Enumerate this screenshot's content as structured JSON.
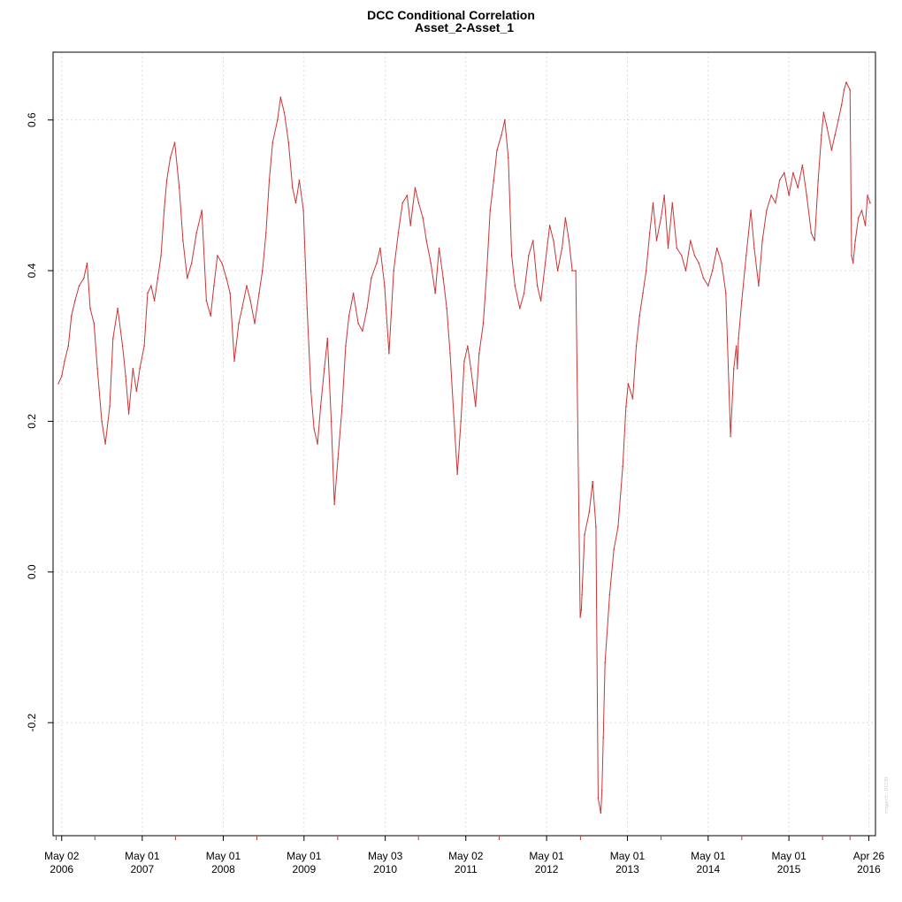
{
  "chart_data": {
    "type": "line",
    "title": "DCC Conditional Correlation",
    "subtitle": "Asset_2-Asset_1",
    "watermark": "rmgarch : DCCfit",
    "xlabel": "",
    "ylabel": "",
    "grid": true,
    "legend": "none",
    "series_color": "#CC3333",
    "grid_color": "#dddddd",
    "xlim": [
      "2006-03-24",
      "2016-05-26"
    ],
    "ylim": [
      -0.35,
      0.69
    ],
    "yticks": [
      {
        "value": -0.2,
        "label": "-0.2"
      },
      {
        "value": 0.0,
        "label": "0.0"
      },
      {
        "value": 0.2,
        "label": "0.2"
      },
      {
        "value": 0.4,
        "label": "0.4"
      },
      {
        "value": 0.6,
        "label": "0.6"
      }
    ],
    "xticks": [
      {
        "date": "2006-05-02",
        "line1": "May 02",
        "line2": "2006"
      },
      {
        "date": "2007-05-01",
        "line1": "May 01",
        "line2": "2007"
      },
      {
        "date": "2008-05-01",
        "line1": "May 01",
        "line2": "2008"
      },
      {
        "date": "2009-05-01",
        "line1": "May 01",
        "line2": "2009"
      },
      {
        "date": "2010-05-03",
        "line1": "May 03",
        "line2": "2010"
      },
      {
        "date": "2011-05-02",
        "line1": "May 02",
        "line2": "2011"
      },
      {
        "date": "2012-05-01",
        "line1": "May 01",
        "line2": "2012"
      },
      {
        "date": "2013-05-01",
        "line1": "May 01",
        "line2": "2013"
      },
      {
        "date": "2014-05-01",
        "line1": "May 01",
        "line2": "2014"
      },
      {
        "date": "2015-05-01",
        "line1": "May 01",
        "line2": "2015"
      },
      {
        "date": "2016-04-26",
        "line1": "Apr 26",
        "line2": "2016"
      }
    ],
    "minor_ticks": [
      "2006-04-07",
      "2006-09-29",
      "2007-09-28",
      "2008-09-30",
      "2009-09-30",
      "2010-09-30",
      "2011-09-30",
      "2012-10-01",
      "2013-09-30",
      "2014-09-30",
      "2015-09-30",
      "2016-02-01"
    ],
    "series": [
      {
        "x": [
          "2006-04-17",
          "2006-05-02",
          "2006-05-15",
          "2006-06-01",
          "2006-06-15",
          "2006-07-01",
          "2006-07-20",
          "2006-08-10",
          "2006-08-25",
          "2006-09-08",
          "2006-09-25",
          "2006-10-10",
          "2006-10-30",
          "2006-11-15",
          "2006-12-05",
          "2006-12-20",
          "2007-01-10",
          "2007-02-01",
          "2007-02-15",
          "2007-03-01",
          "2007-03-20",
          "2007-04-05",
          "2007-04-20",
          "2007-05-10",
          "2007-05-25",
          "2007-06-10",
          "2007-06-25",
          "2007-07-10",
          "2007-07-25",
          "2007-08-08",
          "2007-08-20",
          "2007-09-05",
          "2007-09-25",
          "2007-10-15",
          "2007-11-01",
          "2007-11-20",
          "2007-12-10",
          "2008-01-01",
          "2008-01-25",
          "2008-02-15",
          "2008-03-05",
          "2008-03-20",
          "2008-04-05",
          "2008-04-25",
          "2008-05-15",
          "2008-06-01",
          "2008-06-20",
          "2008-07-10",
          "2008-07-25",
          "2008-08-15",
          "2008-09-01",
          "2008-09-20",
          "2008-10-10",
          "2008-10-25",
          "2008-11-10",
          "2008-11-25",
          "2008-12-10",
          "2009-01-01",
          "2009-01-15",
          "2009-02-01",
          "2009-02-20",
          "2009-03-10",
          "2009-03-25",
          "2009-04-10",
          "2009-04-28",
          "2009-05-15",
          "2009-06-01",
          "2009-06-15",
          "2009-07-01",
          "2009-07-15",
          "2009-08-01",
          "2009-08-15",
          "2009-09-01",
          "2009-09-15",
          "2009-10-01",
          "2009-10-20",
          "2009-11-05",
          "2009-11-20",
          "2009-12-10",
          "2010-01-01",
          "2010-01-20",
          "2010-02-10",
          "2010-03-01",
          "2010-03-25",
          "2010-04-10",
          "2010-04-30",
          "2010-05-20",
          "2010-06-10",
          "2010-07-01",
          "2010-07-20",
          "2010-08-10",
          "2010-08-25",
          "2010-09-15",
          "2010-10-01",
          "2010-10-20",
          "2010-11-05",
          "2010-11-25",
          "2010-12-15",
          "2011-01-01",
          "2011-01-20",
          "2011-02-05",
          "2011-02-20",
          "2011-03-10",
          "2011-03-25",
          "2011-04-10",
          "2011-04-25",
          "2011-05-10",
          "2011-05-25",
          "2011-06-15",
          "2011-07-01",
          "2011-07-20",
          "2011-08-05",
          "2011-08-20",
          "2011-09-05",
          "2011-09-20",
          "2011-10-10",
          "2011-10-25",
          "2011-11-10",
          "2011-11-25",
          "2011-12-10",
          "2012-01-01",
          "2012-01-20",
          "2012-02-10",
          "2012-03-01",
          "2012-03-20",
          "2012-04-05",
          "2012-04-25",
          "2012-05-15",
          "2012-06-01",
          "2012-06-20",
          "2012-07-10",
          "2012-07-25",
          "2012-08-10",
          "2012-08-25",
          "2012-09-10",
          "2012-09-30",
          "2012-10-05",
          "2012-10-08",
          "2012-10-20",
          "2012-11-10",
          "2012-11-25",
          "2012-12-10",
          "2012-12-20",
          "2013-01-01",
          "2013-01-06",
          "2013-01-12",
          "2013-01-20",
          "2013-02-10",
          "2013-03-01",
          "2013-03-20",
          "2013-04-10",
          "2013-04-25",
          "2013-05-05",
          "2013-05-25",
          "2013-06-10",
          "2013-06-25",
          "2013-07-10",
          "2013-07-25",
          "2013-08-10",
          "2013-08-25",
          "2013-09-10",
          "2013-09-30",
          "2013-10-15",
          "2013-11-01",
          "2013-11-20",
          "2013-12-10",
          "2014-01-01",
          "2014-01-20",
          "2014-02-10",
          "2014-03-01",
          "2014-03-20",
          "2014-04-10",
          "2014-05-01",
          "2014-05-20",
          "2014-06-10",
          "2014-07-01",
          "2014-07-20",
          "2014-08-10",
          "2014-08-25",
          "2014-09-05",
          "2014-09-10",
          "2014-09-15",
          "2014-09-30",
          "2014-10-20",
          "2014-11-10",
          "2014-11-25",
          "2014-12-15",
          "2015-01-01",
          "2015-01-20",
          "2015-02-10",
          "2015-03-01",
          "2015-03-20",
          "2015-04-10",
          "2015-05-01",
          "2015-05-20",
          "2015-06-10",
          "2015-07-01",
          "2015-07-20",
          "2015-08-10",
          "2015-08-25",
          "2015-09-10",
          "2015-09-25",
          "2015-10-05",
          "2015-10-20",
          "2015-11-10",
          "2015-11-25",
          "2015-12-10",
          "2015-12-25",
          "2016-01-05",
          "2016-01-15",
          "2016-02-01",
          "2016-02-08",
          "2016-02-15",
          "2016-02-25",
          "2016-03-10",
          "2016-03-25",
          "2016-04-10",
          "2016-04-20",
          "2016-05-02"
        ],
        "y": [
          0.25,
          0.26,
          0.28,
          0.3,
          0.34,
          0.36,
          0.38,
          0.39,
          0.41,
          0.35,
          0.33,
          0.27,
          0.2,
          0.17,
          0.22,
          0.31,
          0.35,
          0.3,
          0.26,
          0.21,
          0.27,
          0.24,
          0.27,
          0.3,
          0.37,
          0.38,
          0.36,
          0.39,
          0.42,
          0.48,
          0.52,
          0.55,
          0.57,
          0.51,
          0.44,
          0.39,
          0.41,
          0.45,
          0.48,
          0.36,
          0.34,
          0.38,
          0.42,
          0.41,
          0.39,
          0.37,
          0.28,
          0.33,
          0.35,
          0.38,
          0.36,
          0.33,
          0.37,
          0.4,
          0.45,
          0.52,
          0.57,
          0.6,
          0.63,
          0.61,
          0.57,
          0.51,
          0.49,
          0.52,
          0.48,
          0.35,
          0.24,
          0.19,
          0.17,
          0.22,
          0.27,
          0.31,
          0.2,
          0.09,
          0.15,
          0.22,
          0.3,
          0.34,
          0.37,
          0.33,
          0.32,
          0.35,
          0.39,
          0.41,
          0.43,
          0.38,
          0.29,
          0.4,
          0.45,
          0.49,
          0.5,
          0.46,
          0.51,
          0.49,
          0.47,
          0.44,
          0.41,
          0.37,
          0.43,
          0.39,
          0.35,
          0.29,
          0.2,
          0.13,
          0.2,
          0.28,
          0.3,
          0.27,
          0.22,
          0.29,
          0.33,
          0.4,
          0.48,
          0.52,
          0.56,
          0.58,
          0.6,
          0.55,
          0.42,
          0.38,
          0.35,
          0.37,
          0.42,
          0.44,
          0.38,
          0.36,
          0.41,
          0.46,
          0.44,
          0.4,
          0.43,
          0.47,
          0.44,
          0.4,
          0.4,
          -0.06,
          -0.05,
          -0.03,
          0.05,
          0.08,
          0.12,
          0.06,
          -0.3,
          -0.32,
          -0.29,
          -0.22,
          -0.12,
          -0.03,
          0.03,
          0.06,
          0.14,
          0.22,
          0.25,
          0.23,
          0.3,
          0.34,
          0.37,
          0.4,
          0.45,
          0.49,
          0.44,
          0.47,
          0.5,
          0.43,
          0.49,
          0.43,
          0.42,
          0.4,
          0.44,
          0.42,
          0.41,
          0.39,
          0.38,
          0.4,
          0.43,
          0.41,
          0.37,
          0.18,
          0.27,
          0.3,
          0.27,
          0.31,
          0.36,
          0.42,
          0.48,
          0.43,
          0.38,
          0.44,
          0.48,
          0.5,
          0.49,
          0.52,
          0.53,
          0.5,
          0.53,
          0.51,
          0.54,
          0.5,
          0.45,
          0.44,
          0.52,
          0.58,
          0.61,
          0.59,
          0.56,
          0.58,
          0.6,
          0.62,
          0.64,
          0.65,
          0.64,
          0.42,
          0.41,
          0.44,
          0.47,
          0.48,
          0.46,
          0.5,
          0.49
        ]
      }
    ]
  }
}
